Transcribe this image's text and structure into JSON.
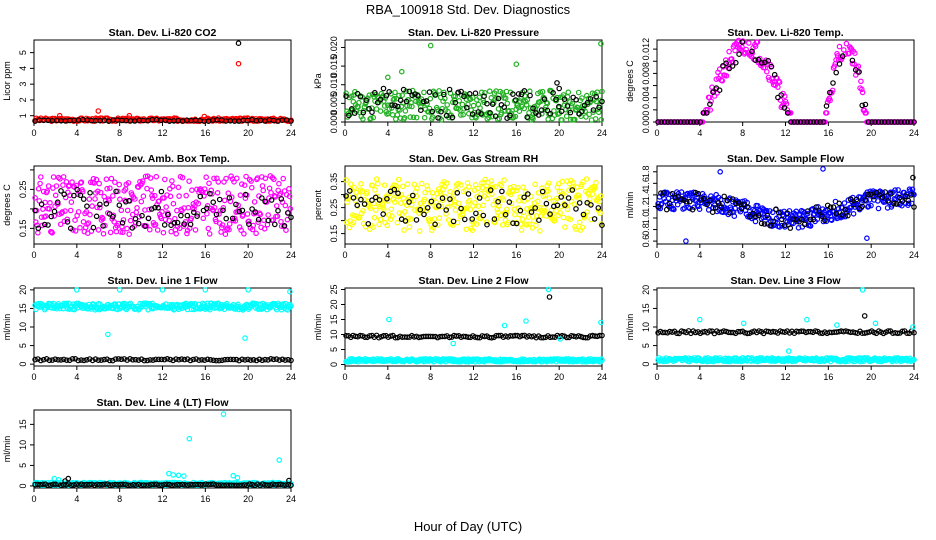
{
  "figure": {
    "title": "RBA_100918  Std. Dev. Diagnostics",
    "xlabel": "Hour of Day (UTC)"
  },
  "chart_data": [
    {
      "type": "scatter",
      "title": "Stan. Dev. Li-820 CO2",
      "ylabel": "Licor ppm",
      "xlim": [
        0,
        24
      ],
      "ylim": [
        0.6,
        5.8
      ],
      "xticks": [
        0,
        4,
        8,
        12,
        16,
        20,
        24
      ],
      "yticks": [
        1,
        2,
        3,
        4,
        5
      ],
      "ytick_labels": [
        "1",
        "2",
        "3",
        "4",
        "5"
      ],
      "colors": {
        "primary": "#ff0000",
        "secondary": "#000000"
      },
      "primary_pattern": {
        "kind": "band",
        "points": 220,
        "x0": 0.1,
        "x1": 24,
        "base": 0.75,
        "amp": 0.1,
        "seed": 3
      },
      "secondary_pattern": {
        "kind": "band",
        "points": 60,
        "x0": 0.1,
        "x1": 24,
        "base": 0.7,
        "amp": 0.05,
        "seed": 4
      },
      "series": [
        {
          "name": "",
          "color": "#ff0000",
          "x": [
            19.1,
            2.4,
            6.0,
            8.9,
            15.9
          ],
          "y": [
            4.3,
            1.0,
            1.3,
            1.0,
            0.95
          ]
        },
        {
          "name": "",
          "color": "#000000",
          "x": [
            19.1
          ],
          "y": [
            5.6
          ]
        }
      ]
    },
    {
      "type": "scatter",
      "title": "Stan. Dev. Li-820 Pressure",
      "ylabel": "kPa",
      "xlim": [
        0,
        24
      ],
      "ylim": [
        0,
        0.022
      ],
      "xticks": [
        0,
        4,
        8,
        12,
        16,
        20,
        24
      ],
      "yticks": [
        0,
        0.005,
        0.01,
        0.015,
        0.02
      ],
      "ytick_labels": [
        "0.000",
        "0.005",
        "0.010",
        "0.015",
        "0.020"
      ],
      "colors": {
        "primary": "#22b022",
        "secondary": "#000000"
      },
      "primary_pattern": {
        "kind": "spread",
        "points": 320,
        "x0": 0.1,
        "x1": 24,
        "base": 0.0045,
        "amp": 0.004,
        "seed": 11
      },
      "secondary_pattern": {
        "kind": "spread",
        "points": 90,
        "x0": 0.1,
        "x1": 24,
        "base": 0.005,
        "amp": 0.004,
        "seed": 12
      },
      "series": [
        {
          "name": "",
          "color": "#22b022",
          "x": [
            8.0,
            5.3,
            16.0,
            23.9,
            4.0
          ],
          "y": [
            0.0205,
            0.0135,
            0.0155,
            0.021,
            0.012
          ]
        },
        {
          "name": "",
          "color": "#000000",
          "x": [
            19.8,
            20.0
          ],
          "y": [
            0.0105,
            0.009
          ]
        }
      ]
    },
    {
      "type": "scatter",
      "title": "Stan. Dev. Li-820 Temp.",
      "ylabel": "degrees C",
      "xlim": [
        0,
        24
      ],
      "ylim": [
        0,
        0.0135
      ],
      "xticks": [
        0,
        4,
        8,
        12,
        16,
        20,
        24
      ],
      "yticks": [
        0,
        0.002,
        0.004,
        0.006,
        0.008,
        0.01,
        0.012
      ],
      "ytick_labels": [
        "0.000",
        "",
        "0.004",
        "",
        "0.008",
        "",
        "0.012"
      ],
      "colors": {
        "primary": "#ff00ff",
        "secondary": "#000000"
      },
      "primary_pattern": {
        "kind": "humps",
        "points": 300,
        "x0": 0.1,
        "x1": 24,
        "seed": 21
      },
      "secondary_pattern": {
        "kind": "humps",
        "points": 80,
        "x0": 0.1,
        "x1": 24,
        "seed": 22
      },
      "series": []
    },
    {
      "type": "scatter",
      "title": "Stan. Dev. Amb. Box Temp.",
      "ylabel": "degrees C",
      "xlim": [
        0,
        24
      ],
      "ylim": [
        0.11,
        0.31
      ],
      "xticks": [
        0,
        4,
        8,
        12,
        16,
        20,
        24
      ],
      "yticks": [
        0.15,
        0.2,
        0.25,
        0.3
      ],
      "ytick_labels": [
        "0.15",
        "",
        "0.25",
        ""
      ],
      "colors": {
        "primary": "#ff00ff",
        "secondary": "#000000"
      },
      "primary_pattern": {
        "kind": "spread",
        "points": 360,
        "x0": 0.1,
        "x1": 24,
        "base": 0.21,
        "amp": 0.075,
        "seed": 31
      },
      "secondary_pattern": {
        "kind": "spread",
        "points": 80,
        "x0": 0.1,
        "x1": 24,
        "base": 0.2,
        "amp": 0.05,
        "seed": 32
      },
      "series": []
    },
    {
      "type": "scatter",
      "title": "Stan. Dev. Gas Stream RH",
      "ylabel": "percent",
      "xlim": [
        0,
        24
      ],
      "ylim": [
        0.11,
        0.41
      ],
      "xticks": [
        0,
        4,
        8,
        12,
        16,
        20,
        24
      ],
      "yticks": [
        0.15,
        0.2,
        0.25,
        0.3,
        0.35
      ],
      "ytick_labels": [
        "0.15",
        "",
        "0.25",
        "",
        "0.35"
      ],
      "colors": {
        "primary": "#ffff00",
        "secondary": "#000000"
      },
      "primary_pattern": {
        "kind": "spread",
        "points": 380,
        "x0": 0.1,
        "x1": 24,
        "base": 0.26,
        "amp": 0.1,
        "seed": 41
      },
      "secondary_pattern": {
        "kind": "spread",
        "points": 70,
        "x0": 0.1,
        "x1": 24,
        "base": 0.25,
        "amp": 0.07,
        "seed": 42
      },
      "series": []
    },
    {
      "type": "scatter",
      "title": "Stan. Dev. Sample Flow",
      "ylabel": "ml/min",
      "xlim": [
        0,
        24
      ],
      "ylim": [
        0.55,
        1.9
      ],
      "xticks": [
        0,
        4,
        8,
        12,
        16,
        20,
        24
      ],
      "yticks": [
        0.6,
        0.8,
        1.0,
        1.2,
        1.4,
        1.6,
        1.8
      ],
      "ytick_labels": [
        "0.6",
        "0.8",
        "1.0",
        "1.2",
        "1.4",
        "1.6",
        "1.8"
      ],
      "colors": {
        "primary": "#0000ff",
        "secondary": "#000000"
      },
      "primary_pattern": {
        "kind": "dip",
        "points": 340,
        "x0": 0.1,
        "x1": 24,
        "seed": 51
      },
      "secondary_pattern": {
        "kind": "dip",
        "points": 90,
        "x0": 0.1,
        "x1": 24,
        "seed": 52
      },
      "series": [
        {
          "name": "",
          "color": "#0000ff",
          "x": [
            2.7,
            15.5,
            5.9,
            19.6
          ],
          "y": [
            0.6,
            1.85,
            1.8,
            0.65
          ]
        },
        {
          "name": "",
          "color": "#000000",
          "x": [
            23.9
          ],
          "y": [
            1.7
          ]
        }
      ]
    },
    {
      "type": "scatter",
      "title": "Stan. Dev. Line 1 Flow",
      "ylabel": "ml/min",
      "xlim": [
        0,
        24
      ],
      "ylim": [
        -0.5,
        20.5
      ],
      "xticks": [
        0,
        4,
        8,
        12,
        16,
        20,
        24
      ],
      "yticks": [
        0,
        5,
        10,
        15,
        20
      ],
      "ytick_labels": [
        "0",
        "5",
        "10",
        "15",
        "20"
      ],
      "colors": {
        "primary": "#00ffff",
        "secondary": "#000000"
      },
      "primary_pattern": {
        "kind": "band",
        "points": 320,
        "x0": 0.1,
        "x1": 24,
        "base": 15.5,
        "amp": 0.9,
        "seed": 61
      },
      "secondary_pattern": {
        "kind": "band",
        "points": 90,
        "x0": 0.1,
        "x1": 24,
        "base": 1.2,
        "amp": 0.25,
        "seed": 62
      },
      "series": [
        {
          "name": "",
          "color": "#00ffff",
          "x": [
            4.0,
            8.0,
            12.0,
            16.0,
            20.0,
            23.9,
            19.7,
            6.9
          ],
          "y": [
            20.0,
            20.0,
            20.0,
            20.0,
            20.0,
            19.5,
            7.0,
            8.0
          ]
        }
      ]
    },
    {
      "type": "scatter",
      "title": "Stan. Dev. Line 2 Flow",
      "ylabel": "ml/min",
      "xlim": [
        0,
        24
      ],
      "ylim": [
        -0.5,
        25.5
      ],
      "xticks": [
        0,
        4,
        8,
        12,
        16,
        20,
        24
      ],
      "yticks": [
        0,
        5,
        10,
        15,
        20,
        25
      ],
      "ytick_labels": [
        "0",
        "5",
        "10",
        "15",
        "20",
        "25"
      ],
      "colors": {
        "primary": "#00ffff",
        "secondary": "#000000"
      },
      "primary_pattern": {
        "kind": "band",
        "points": 320,
        "x0": 0.1,
        "x1": 24,
        "base": 1.4,
        "amp": 0.5,
        "seed": 71
      },
      "secondary_pattern": {
        "kind": "band",
        "points": 110,
        "x0": 0.1,
        "x1": 24,
        "base": 9.3,
        "amp": 0.4,
        "seed": 72
      },
      "series": [
        {
          "name": "",
          "color": "#00ffff",
          "x": [
            19.0,
            4.1,
            14.9,
            16.9,
            23.9,
            20.1,
            10.1
          ],
          "y": [
            25.0,
            15.0,
            13.0,
            14.5,
            14.0,
            8.5,
            7.0
          ]
        },
        {
          "name": "",
          "color": "#000000",
          "x": [
            19.1
          ],
          "y": [
            22.5
          ]
        }
      ]
    },
    {
      "type": "scatter",
      "title": "Stan. Dev. Line 3 Flow",
      "ylabel": "ml/min",
      "xlim": [
        0,
        24
      ],
      "ylim": [
        -0.5,
        20.5
      ],
      "xticks": [
        0,
        4,
        8,
        12,
        16,
        20,
        24
      ],
      "yticks": [
        0,
        5,
        10,
        15,
        20
      ],
      "ytick_labels": [
        "0",
        "5",
        "10",
        "15",
        "20"
      ],
      "colors": {
        "primary": "#00ffff",
        "secondary": "#000000"
      },
      "primary_pattern": {
        "kind": "band",
        "points": 320,
        "x0": 0.1,
        "x1": 24,
        "base": 1.2,
        "amp": 0.5,
        "seed": 81
      },
      "secondary_pattern": {
        "kind": "band",
        "points": 110,
        "x0": 0.1,
        "x1": 24,
        "base": 8.6,
        "amp": 0.35,
        "seed": 82
      },
      "series": [
        {
          "name": "",
          "color": "#00ffff",
          "x": [
            19.2,
            4.0,
            8.1,
            14.0,
            16.8,
            20.4,
            23.9,
            12.3
          ],
          "y": [
            20.0,
            12.0,
            11.0,
            12.0,
            10.5,
            11.0,
            10.0,
            3.5
          ]
        },
        {
          "name": "",
          "color": "#000000",
          "x": [
            19.4
          ],
          "y": [
            13.0
          ]
        }
      ]
    },
    {
      "type": "scatter",
      "title": "Stan. Dev. Line 4 (LT) Flow",
      "ylabel": "ml/min",
      "xlim": [
        0,
        24
      ],
      "ylim": [
        -0.5,
        18.5
      ],
      "xticks": [
        0,
        4,
        8,
        12,
        16,
        20,
        24
      ],
      "yticks": [
        0,
        5,
        10,
        15
      ],
      "ytick_labels": [
        "0",
        "5",
        "10",
        "15"
      ],
      "colors": {
        "primary": "#00ffff",
        "secondary": "#000000"
      },
      "primary_pattern": {
        "kind": "band",
        "points": 300,
        "x0": 0.1,
        "x1": 24,
        "base": 0.5,
        "amp": 0.35,
        "seed": 91
      },
      "secondary_pattern": {
        "kind": "band",
        "points": 100,
        "x0": 0.1,
        "x1": 24,
        "base": 0.3,
        "amp": 0.15,
        "seed": 92
      },
      "series": [
        {
          "name": "",
          "color": "#00ffff",
          "x": [
            17.7,
            14.5,
            22.9,
            12.6,
            13.0,
            13.5,
            14.0,
            18.6,
            19.0,
            1.9,
            2.3
          ],
          "y": [
            17.5,
            11.5,
            6.3,
            3.0,
            2.7,
            2.6,
            2.4,
            2.5,
            2.0,
            1.8,
            1.5
          ]
        },
        {
          "name": "",
          "color": "#000000",
          "x": [
            2.9,
            3.2,
            23.8
          ],
          "y": [
            1.2,
            1.8,
            1.3
          ]
        }
      ]
    }
  ]
}
